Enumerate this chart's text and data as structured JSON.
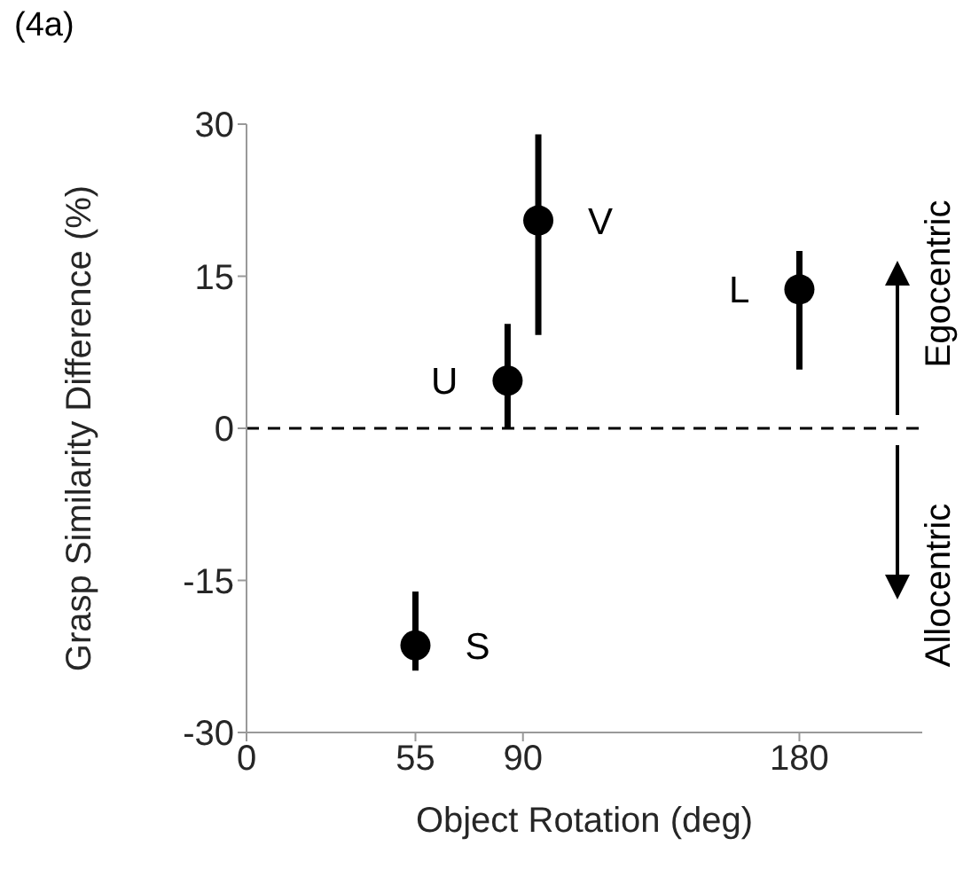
{
  "chart_data": {
    "type": "scatter",
    "title": "(4a)",
    "xlabel": "Object Rotation (deg)",
    "ylabel": "Grasp Similarity Difference (%)",
    "x": [
      55,
      85,
      95,
      180
    ],
    "values": [
      -21.4,
      4.7,
      20.5,
      13.7
    ],
    "errors": [
      [
        -23.9,
        -16.1
      ],
      [
        0,
        10.3
      ],
      [
        9.2,
        29
      ],
      [
        5.8,
        17.5
      ]
    ],
    "color": "#000000",
    "marker": "circle",
    "xlim": [
      0,
      220
    ],
    "xticks": [
      0,
      55,
      90,
      180
    ],
    "ylim": [
      -30,
      30
    ],
    "yticks": [
      -30,
      -15,
      0,
      15,
      30
    ],
    "ref_lines": [
      {
        "axis": "y",
        "value": 0,
        "line_style": "dashed",
        "color": "#000000"
      }
    ],
    "annotations": [
      {
        "text": "S",
        "x": 55,
        "y": -21.4
      },
      {
        "text": "U",
        "x": 85,
        "y": 4.7
      },
      {
        "text": "V",
        "x": 95,
        "y": 20.5
      },
      {
        "text": "L",
        "x": 180,
        "y": 13.7
      },
      "Egocentric",
      "Allocentric"
    ]
  }
}
